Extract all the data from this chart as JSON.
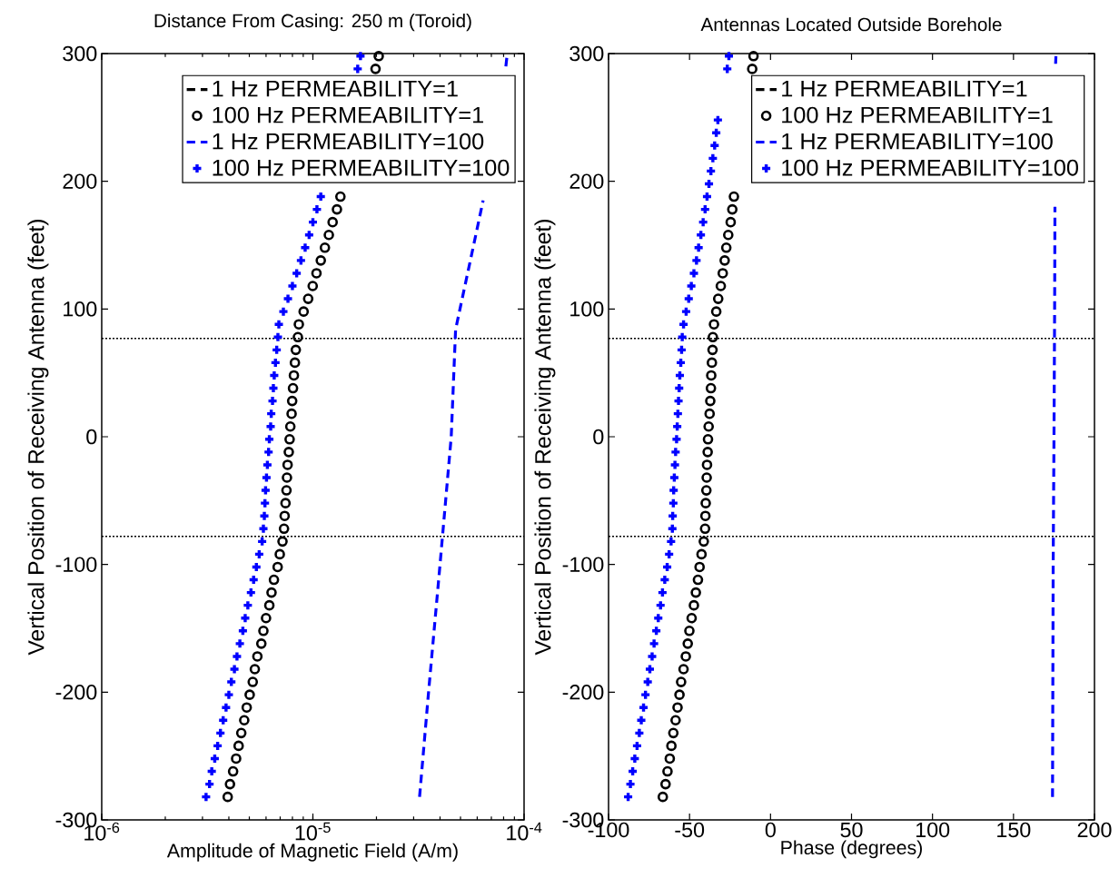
{
  "chart_data": [
    {
      "type": "scatter",
      "title": "Distance From Casing: 250 m (Toroid)",
      "xlabel": "Amplitude of Magnetic Field (A/m)",
      "ylabel": "Vertical Position of Receiving Antenna (feet)",
      "log": "x",
      "xlim": [
        1e-06,
        0.0001
      ],
      "ylim": [
        -300,
        300
      ],
      "xticks": [
        {
          "value": 1e-06,
          "label": "10$^{-6}$"
        },
        {
          "value": 1e-05,
          "label": "10$^{-5}$"
        },
        {
          "value": 0.0001,
          "label": "10$^{-4}$"
        }
      ],
      "yticks": [
        -300,
        -200,
        -100,
        0,
        100,
        200,
        300
      ],
      "legend": "top right",
      "ref_lines": [
        {
          "axis": "y",
          "value": 77,
          "color": "#000000",
          "line_style": "dotted"
        },
        {
          "axis": "y",
          "value": -78,
          "color": "#000000",
          "line_style": "dotted"
        }
      ],
      "series": [
        {
          "name": "1 Hz PERMEABILITY=1",
          "type": "line",
          "color": "#000000",
          "line_style": "dashed",
          "x": [
            null
          ],
          "values": [
            null
          ]
        },
        {
          "name": "100 Hz PERMEABILITY=1",
          "color": "#000000",
          "marker": "circle",
          "x": [
            3.95e-06,
            4.05e-06,
            4.19e-06,
            4.33e-06,
            4.45e-06,
            4.58e-06,
            4.73e-06,
            4.86e-06,
            5.02e-06,
            5.19e-06,
            5.31e-06,
            5.46e-06,
            5.7e-06,
            5.83e-06,
            6e-06,
            6.22e-06,
            6.37e-06,
            6.54e-06,
            6.81e-06,
            6.97e-06,
            7.18e-06,
            7.3e-06,
            7.35e-06,
            7.42e-06,
            7.5e-06,
            7.54e-06,
            7.59e-06,
            7.69e-06,
            7.76e-06,
            7.82e-06,
            7.93e-06,
            7.98e-06,
            8.05e-06,
            8.13e-06,
            8.22e-06,
            8.3e-06,
            8.49e-06,
            8.58e-06,
            9.04e-06,
            9.5e-06,
            9.98e-06,
            1.04e-05,
            1.09e-05,
            1.14e-05,
            1.19e-05,
            1.24e-05,
            1.3e-05,
            1.35e-05,
            1.98e-05,
            2.05e-05
          ],
          "values": [
            -282,
            -272,
            -262,
            -252,
            -242,
            -232,
            -222,
            -212,
            -202,
            -192,
            -182,
            -172,
            -162,
            -152,
            -142,
            -132,
            -122,
            -112,
            -102,
            -92,
            -82,
            -72,
            -62,
            -52,
            -42,
            -32,
            -22,
            -12,
            -2,
            8,
            18,
            28,
            38,
            48,
            58,
            68,
            78,
            88,
            98,
            108,
            118,
            128,
            138,
            148,
            158,
            168,
            178,
            188,
            288,
            298
          ]
        },
        {
          "name": "1 Hz PERMEABILITY=100",
          "type": "line",
          "color": "#0000ff",
          "line_style": "dashed",
          "x": [
            3.2e-05,
            3.53e-05,
            4e-05,
            4.52e-05,
            4.74e-05,
            5.77e-05,
            6.4e-05,
            null,
            8.2e-05,
            8.3e-05
          ],
          "values": [
            -282,
            -200,
            -100,
            0,
            84,
            150,
            185,
            null,
            290,
            298
          ]
        },
        {
          "name": "100 Hz PERMEABILITY=100",
          "color": "#0000ff",
          "marker": "cross",
          "x": [
            3.12e-06,
            3.24e-06,
            3.32e-06,
            3.43e-06,
            3.54e-06,
            3.65e-06,
            3.76e-06,
            3.88e-06,
            4e-06,
            4.11e-06,
            4.25e-06,
            4.37e-06,
            4.51e-06,
            4.66e-06,
            4.78e-06,
            4.92e-06,
            5.09e-06,
            5.24e-06,
            5.4e-06,
            5.57e-06,
            5.75e-06,
            5.83e-06,
            5.89e-06,
            5.93e-06,
            5.97e-06,
            6.03e-06,
            6.09e-06,
            6.17e-06,
            6.22e-06,
            6.31e-06,
            6.35e-06,
            6.44e-06,
            6.5e-06,
            6.56e-06,
            6.65e-06,
            6.74e-06,
            6.83e-06,
            6.9e-06,
            7.25e-06,
            7.62e-06,
            8e-06,
            8.38e-06,
            8.78e-06,
            9.19e-06,
            9.6e-06,
            1e-05,
            1.045e-05,
            1.09e-05,
            1.63e-05,
            1.68e-05
          ],
          "values": [
            -282,
            -272,
            -262,
            -252,
            -242,
            -232,
            -222,
            -212,
            -202,
            -192,
            -182,
            -172,
            -162,
            -152,
            -142,
            -132,
            -122,
            -112,
            -102,
            -92,
            -82,
            -72,
            -62,
            -52,
            -42,
            -32,
            -22,
            -12,
            -2,
            8,
            18,
            28,
            38,
            48,
            58,
            68,
            78,
            88,
            98,
            108,
            118,
            128,
            138,
            148,
            158,
            168,
            178,
            188,
            288,
            298
          ]
        }
      ]
    },
    {
      "type": "scatter",
      "title": "Antennas Located Outside Borehole",
      "xlabel": "Phase (degrees)",
      "ylabel": "Vertical Position of Receiving Antenna (feet)",
      "xlim": [
        -100,
        200
      ],
      "ylim": [
        -300,
        300
      ],
      "xticks": [
        -100,
        -50,
        0,
        50,
        100,
        150,
        200
      ],
      "yticks": [
        -300,
        -200,
        -100,
        0,
        100,
        200,
        300
      ],
      "legend": "top right",
      "ref_lines": [
        {
          "axis": "y",
          "value": 77,
          "color": "#000000",
          "line_style": "dotted"
        },
        {
          "axis": "y",
          "value": -78,
          "color": "#000000",
          "line_style": "dotted"
        }
      ],
      "series": [
        {
          "name": "1 Hz PERMEABILITY=1",
          "type": "line",
          "color": "#000000",
          "line_style": "dashed",
          "x": [
            null
          ],
          "values": [
            null
          ]
        },
        {
          "name": "100 Hz PERMEABILITY=1",
          "color": "#000000",
          "marker": "circle",
          "x": [
            -66.5,
            -64.8,
            -63.6,
            -62.2,
            -61.2,
            -60.0,
            -58.6,
            -57.4,
            -56.2,
            -55.2,
            -53.7,
            -52.3,
            -51.1,
            -50.1,
            -48.7,
            -47.3,
            -46.1,
            -44.8,
            -43.8,
            -42.6,
            -41.2,
            -40.4,
            -40.2,
            -40.0,
            -39.6,
            -39.4,
            -39.2,
            -38.8,
            -38.6,
            -38.2,
            -37.6,
            -37.2,
            -36.8,
            -36.6,
            -36.2,
            -35.8,
            -35.6,
            -34.9,
            -33.5,
            -32.3,
            -30.7,
            -29.5,
            -28.3,
            -27.3,
            -26.1,
            -24.6,
            -23.6,
            -22.6,
            -11.3,
            -10.5
          ],
          "values": [
            -282,
            -272,
            -262,
            -252,
            -242,
            -232,
            -222,
            -212,
            -202,
            -192,
            -182,
            -172,
            -162,
            -152,
            -142,
            -132,
            -122,
            -112,
            -102,
            -92,
            -82,
            -72,
            -62,
            -52,
            -42,
            -32,
            -22,
            -12,
            -2,
            8,
            18,
            28,
            38,
            48,
            58,
            68,
            78,
            88,
            98,
            108,
            118,
            128,
            138,
            148,
            158,
            168,
            178,
            188,
            288,
            298
          ]
        },
        {
          "name": "1 Hz PERMEABILITY=100",
          "type": "line",
          "color": "#0000ff",
          "line_style": "dashed",
          "x": [
            174.1,
            174.5,
            175,
            175.4,
            175.6,
            null,
            176,
            176.2
          ],
          "values": [
            -282,
            -100,
            0,
            100,
            180,
            null,
            292,
            298
          ]
        },
        {
          "name": "100 Hz PERMEABILITY=100",
          "color": "#0000ff",
          "marker": "cross",
          "x": [
            -87.9,
            -86.5,
            -85.1,
            -83.8,
            -82.4,
            -81.0,
            -79.8,
            -78.4,
            -77.2,
            -75.8,
            -74.5,
            -73.1,
            -71.9,
            -70.5,
            -69.3,
            -67.9,
            -66.7,
            -65.3,
            -63.8,
            -62.6,
            -61.4,
            -60.6,
            -60.4,
            -60.0,
            -59.8,
            -59.4,
            -59.0,
            -58.6,
            -58.0,
            -57.6,
            -57.2,
            -56.8,
            -56.4,
            -56.0,
            -55.4,
            -54.9,
            -54.5,
            -53.7,
            -52.1,
            -50.5,
            -48.9,
            -47.3,
            -45.7,
            -44.4,
            -43.0,
            -41.6,
            -40.4,
            -39.2,
            -38.0,
            -36.8,
            -35.6,
            -34.5,
            -33.5,
            -32.5,
            -26.7,
            -25.7
          ],
          "values": [
            -282,
            -272,
            -262,
            -252,
            -242,
            -232,
            -222,
            -212,
            -202,
            -192,
            -182,
            -172,
            -162,
            -152,
            -142,
            -132,
            -122,
            -112,
            -102,
            -92,
            -82,
            -72,
            -62,
            -52,
            -42,
            -32,
            -22,
            -12,
            -2,
            8,
            18,
            28,
            38,
            48,
            58,
            68,
            78,
            88,
            98,
            108,
            118,
            128,
            138,
            148,
            158,
            168,
            178,
            188,
            198,
            208,
            218,
            228,
            238,
            248,
            288,
            298
          ]
        }
      ]
    }
  ]
}
